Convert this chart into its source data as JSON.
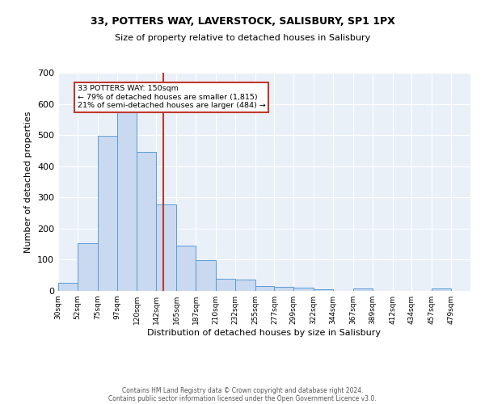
{
  "title1": "33, POTTERS WAY, LAVERSTOCK, SALISBURY, SP1 1PX",
  "title2": "Size of property relative to detached houses in Salisbury",
  "xlabel": "Distribution of detached houses by size in Salisbury",
  "ylabel": "Number of detached properties",
  "footer1": "Contains HM Land Registry data © Crown copyright and database right 2024.",
  "footer2": "Contains public sector information licensed under the Open Government Licence v3.0.",
  "annotation_title": "33 POTTERS WAY: 150sqm",
  "annotation_line1": "← 79% of detached houses are smaller (1,815)",
  "annotation_line2": "21% of semi-detached houses are larger (484) →",
  "bar_left_edges": [
    30,
    52,
    75,
    97,
    120,
    142,
    165,
    187,
    210,
    232,
    255,
    277,
    299,
    322,
    344,
    367,
    389,
    412,
    434,
    457
  ],
  "bar_widths": [
    22,
    23,
    22,
    23,
    22,
    23,
    22,
    23,
    22,
    23,
    22,
    22,
    23,
    22,
    23,
    22,
    23,
    22,
    23,
    22
  ],
  "bar_heights": [
    25,
    153,
    497,
    573,
    447,
    278,
    145,
    99,
    38,
    36,
    16,
    13,
    10,
    5,
    0,
    8,
    0,
    0,
    0,
    7
  ],
  "tick_labels": [
    "30sqm",
    "52sqm",
    "75sqm",
    "97sqm",
    "120sqm",
    "142sqm",
    "165sqm",
    "187sqm",
    "210sqm",
    "232sqm",
    "255sqm",
    "277sqm",
    "299sqm",
    "322sqm",
    "344sqm",
    "367sqm",
    "389sqm",
    "412sqm",
    "434sqm",
    "457sqm",
    "479sqm"
  ],
  "tick_positions": [
    30,
    52,
    75,
    97,
    120,
    142,
    165,
    187,
    210,
    232,
    255,
    277,
    299,
    322,
    344,
    367,
    389,
    412,
    434,
    457,
    479
  ],
  "bar_color": "#c8d9f0",
  "bar_edge_color": "#5b9bd5",
  "vline_x": 150,
  "vline_color": "#c0392b",
  "ylim": [
    0,
    700
  ],
  "xlim": [
    30,
    501
  ],
  "bg_color": "#eaf0f8",
  "annotation_box_color": "white",
  "annotation_box_edge": "#c0392b",
  "title1_fontsize": 9,
  "title2_fontsize": 8,
  "ylabel_fontsize": 8,
  "xlabel_fontsize": 8,
  "tick_fontsize": 6.5,
  "footer_fontsize": 5.5,
  "footer_color": "#555555"
}
